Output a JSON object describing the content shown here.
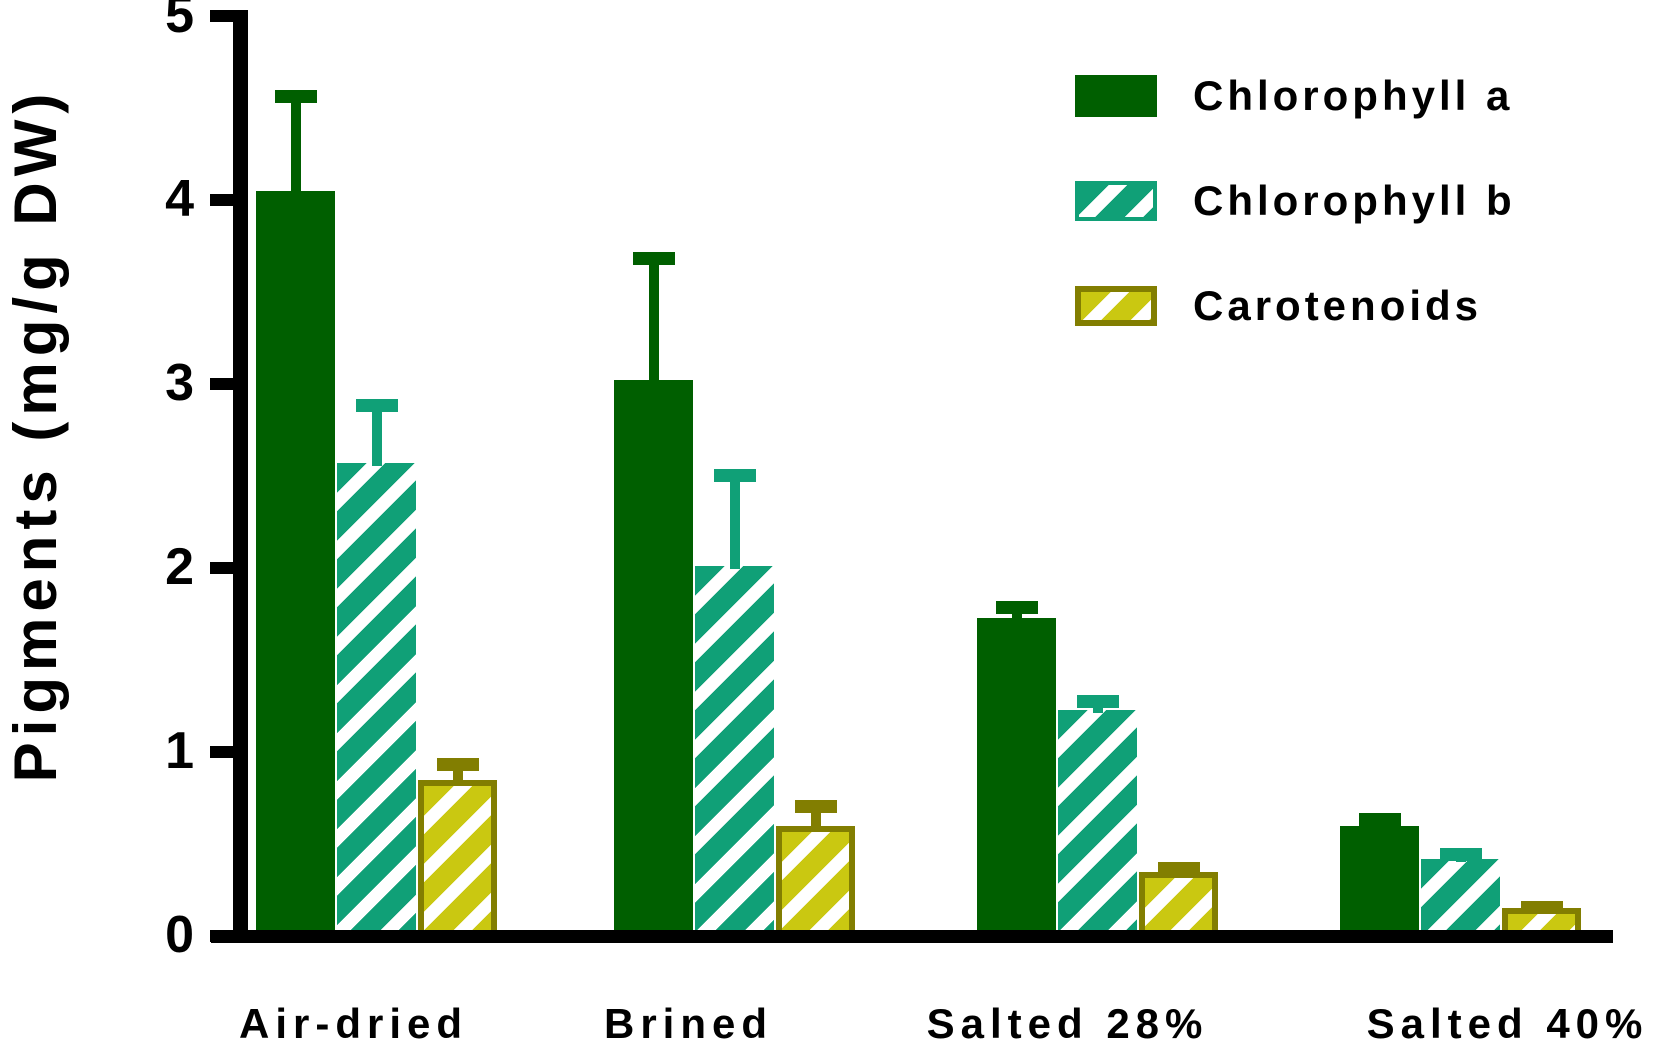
{
  "chart_data": {
    "type": "bar",
    "title": "",
    "xlabel": "",
    "ylabel": "Pigments (mg/g DW)",
    "ylim": [
      0,
      5
    ],
    "yticks": [
      0,
      1,
      2,
      3,
      4,
      5
    ],
    "grid": false,
    "legend_position": "top-right",
    "error_bars": "upper-sd",
    "background": "#ffffff",
    "axis_color": "#000000",
    "categories": [
      "Air-dried",
      "Brined",
      "Salted 28%",
      "Salted 40%"
    ],
    "series": [
      {
        "name": "Chlorophyll a",
        "pattern": "solid",
        "color": "#005f00",
        "values": [
          4.05,
          3.02,
          1.73,
          0.6
        ],
        "errors": [
          0.55,
          0.7,
          0.09,
          0.07
        ]
      },
      {
        "name": "Chlorophyll b",
        "pattern": "diagonal-stripes",
        "color": "#10a077",
        "stripe_color": "#ffffff",
        "values": [
          2.57,
          2.01,
          1.23,
          0.42
        ],
        "errors": [
          0.35,
          0.53,
          0.08,
          0.06
        ]
      },
      {
        "name": "Carotenoids",
        "pattern": "diagonal-stripes",
        "color": "#cac811",
        "stripe_color": "#ffffff",
        "border_color": "#827e01",
        "values": [
          0.85,
          0.6,
          0.35,
          0.15
        ],
        "errors": [
          0.12,
          0.14,
          0.05,
          0.04
        ]
      }
    ]
  }
}
